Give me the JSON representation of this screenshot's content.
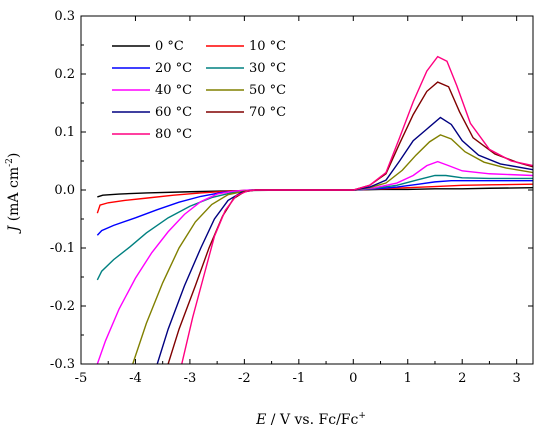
{
  "chart_data": {
    "type": "line",
    "xlabel": {
      "var": "E",
      "rest": " / V vs. Fc/Fc",
      "sup": "+"
    },
    "ylabel": {
      "var": "J",
      "rest": " (mA cm",
      "sup": "-2",
      "close": ")"
    },
    "xlim": [
      -5,
      3.3
    ],
    "ylim": [
      -0.3,
      0.3
    ],
    "xticks": [
      "-5",
      "-4",
      "-3",
      "-2",
      "-1",
      "0",
      "1",
      "2",
      "3"
    ],
    "yticks": [
      "-0.3",
      "-0.2",
      "-0.1",
      "0.0",
      "0.1",
      "0.2",
      "0.3"
    ],
    "grid": false,
    "legend_position": "top-left",
    "series": [
      {
        "name": "0 °C",
        "color": "#000000",
        "points": [
          [
            -4.7,
            -0.012
          ],
          [
            -4.6,
            -0.009
          ],
          [
            -4.3,
            -0.007
          ],
          [
            -3.8,
            -0.005
          ],
          [
            -3.0,
            -0.003
          ],
          [
            -2.0,
            -0.001
          ],
          [
            -1.0,
            0.0
          ],
          [
            0.0,
            0.0
          ],
          [
            0.5,
            0.001
          ],
          [
            1.0,
            0.001
          ],
          [
            1.5,
            0.002
          ],
          [
            2.0,
            0.002
          ],
          [
            2.5,
            0.003
          ],
          [
            3.3,
            0.004
          ]
        ]
      },
      {
        "name": "10 °C",
        "color": "#ff0000",
        "points": [
          [
            -4.7,
            -0.04
          ],
          [
            -4.65,
            -0.026
          ],
          [
            -4.5,
            -0.022
          ],
          [
            -4.2,
            -0.018
          ],
          [
            -3.8,
            -0.014
          ],
          [
            -3.3,
            -0.009
          ],
          [
            -2.8,
            -0.005
          ],
          [
            -2.3,
            -0.002
          ],
          [
            -1.8,
            0.0
          ],
          [
            0.0,
            0.0
          ],
          [
            0.5,
            0.002
          ],
          [
            1.0,
            0.004
          ],
          [
            1.5,
            0.006
          ],
          [
            2.0,
            0.008
          ],
          [
            2.5,
            0.009
          ],
          [
            3.3,
            0.01
          ]
        ]
      },
      {
        "name": "20 °C",
        "color": "#0000ff",
        "points": [
          [
            -4.7,
            -0.078
          ],
          [
            -4.62,
            -0.07
          ],
          [
            -4.4,
            -0.061
          ],
          [
            -4.0,
            -0.048
          ],
          [
            -3.6,
            -0.034
          ],
          [
            -3.2,
            -0.021
          ],
          [
            -2.8,
            -0.011
          ],
          [
            -2.4,
            -0.004
          ],
          [
            -2.0,
            -0.001
          ],
          [
            -1.8,
            0.0
          ],
          [
            0.0,
            0.0
          ],
          [
            0.4,
            0.002
          ],
          [
            0.8,
            0.005
          ],
          [
            1.2,
            0.01
          ],
          [
            1.5,
            0.014
          ],
          [
            1.8,
            0.016
          ],
          [
            2.2,
            0.016
          ],
          [
            2.6,
            0.016
          ],
          [
            3.3,
            0.016
          ]
        ]
      },
      {
        "name": "30 °C",
        "color": "#008080",
        "points": [
          [
            -4.7,
            -0.155
          ],
          [
            -4.62,
            -0.14
          ],
          [
            -4.4,
            -0.12
          ],
          [
            -4.1,
            -0.098
          ],
          [
            -3.8,
            -0.074
          ],
          [
            -3.4,
            -0.048
          ],
          [
            -3.0,
            -0.028
          ],
          [
            -2.6,
            -0.013
          ],
          [
            -2.2,
            -0.004
          ],
          [
            -1.9,
            0.0
          ],
          [
            0.0,
            0.0
          ],
          [
            0.4,
            0.003
          ],
          [
            0.8,
            0.008
          ],
          [
            1.2,
            0.018
          ],
          [
            1.5,
            0.025
          ],
          [
            1.7,
            0.025
          ],
          [
            2.0,
            0.021
          ],
          [
            2.5,
            0.02
          ],
          [
            3.3,
            0.02
          ]
        ]
      },
      {
        "name": "40 °C",
        "color": "#ff00ff",
        "points": [
          [
            -4.7,
            -0.3
          ],
          [
            -4.55,
            -0.26
          ],
          [
            -4.3,
            -0.205
          ],
          [
            -4.0,
            -0.152
          ],
          [
            -3.7,
            -0.108
          ],
          [
            -3.4,
            -0.072
          ],
          [
            -3.1,
            -0.042
          ],
          [
            -2.8,
            -0.02
          ],
          [
            -2.5,
            -0.007
          ],
          [
            -2.2,
            -0.002
          ],
          [
            -1.9,
            0.0
          ],
          [
            0.0,
            0.0
          ],
          [
            0.4,
            0.004
          ],
          [
            0.8,
            0.012
          ],
          [
            1.1,
            0.025
          ],
          [
            1.35,
            0.042
          ],
          [
            1.55,
            0.049
          ],
          [
            1.75,
            0.042
          ],
          [
            2.0,
            0.033
          ],
          [
            2.5,
            0.028
          ],
          [
            3.3,
            0.025
          ]
        ]
      },
      {
        "name": "50 °C",
        "color": "#808000",
        "points": [
          [
            -4.05,
            -0.3
          ],
          [
            -3.8,
            -0.23
          ],
          [
            -3.5,
            -0.16
          ],
          [
            -3.2,
            -0.1
          ],
          [
            -2.9,
            -0.055
          ],
          [
            -2.6,
            -0.025
          ],
          [
            -2.3,
            -0.008
          ],
          [
            -2.0,
            -0.002
          ],
          [
            -1.8,
            0.0
          ],
          [
            0.0,
            0.0
          ],
          [
            0.3,
            0.004
          ],
          [
            0.6,
            0.012
          ],
          [
            0.9,
            0.034
          ],
          [
            1.15,
            0.06
          ],
          [
            1.4,
            0.083
          ],
          [
            1.6,
            0.095
          ],
          [
            1.8,
            0.088
          ],
          [
            2.05,
            0.066
          ],
          [
            2.4,
            0.048
          ],
          [
            2.8,
            0.038
          ],
          [
            3.3,
            0.03
          ]
        ]
      },
      {
        "name": "60 °C",
        "color": "#000080",
        "points": [
          [
            -3.6,
            -0.3
          ],
          [
            -3.4,
            -0.24
          ],
          [
            -3.1,
            -0.165
          ],
          [
            -2.8,
            -0.1
          ],
          [
            -2.55,
            -0.05
          ],
          [
            -2.3,
            -0.018
          ],
          [
            -2.05,
            -0.004
          ],
          [
            -1.8,
            0.0
          ],
          [
            0.0,
            0.0
          ],
          [
            0.3,
            0.005
          ],
          [
            0.6,
            0.017
          ],
          [
            0.85,
            0.05
          ],
          [
            1.1,
            0.085
          ],
          [
            1.35,
            0.105
          ],
          [
            1.6,
            0.125
          ],
          [
            1.8,
            0.113
          ],
          [
            2.0,
            0.085
          ],
          [
            2.3,
            0.06
          ],
          [
            2.7,
            0.045
          ],
          [
            3.3,
            0.035
          ]
        ]
      },
      {
        "name": "70 °C",
        "color": "#800000",
        "points": [
          [
            -3.4,
            -0.3
          ],
          [
            -3.2,
            -0.24
          ],
          [
            -2.9,
            -0.165
          ],
          [
            -2.65,
            -0.1
          ],
          [
            -2.4,
            -0.045
          ],
          [
            -2.2,
            -0.015
          ],
          [
            -2.0,
            -0.003
          ],
          [
            -1.8,
            0.0
          ],
          [
            0.0,
            0.0
          ],
          [
            0.3,
            0.008
          ],
          [
            0.6,
            0.028
          ],
          [
            0.85,
            0.08
          ],
          [
            1.1,
            0.13
          ],
          [
            1.35,
            0.17
          ],
          [
            1.55,
            0.186
          ],
          [
            1.75,
            0.178
          ],
          [
            1.95,
            0.135
          ],
          [
            2.2,
            0.09
          ],
          [
            2.6,
            0.062
          ],
          [
            3.0,
            0.048
          ],
          [
            3.3,
            0.04
          ]
        ]
      },
      {
        "name": "80 °C",
        "color": "#ff0080",
        "points": [
          [
            -3.15,
            -0.3
          ],
          [
            -2.95,
            -0.22
          ],
          [
            -2.75,
            -0.15
          ],
          [
            -2.55,
            -0.08
          ],
          [
            -2.35,
            -0.035
          ],
          [
            -2.15,
            -0.01
          ],
          [
            -1.95,
            -0.002
          ],
          [
            -1.8,
            0.0
          ],
          [
            0.0,
            0.0
          ],
          [
            0.3,
            0.008
          ],
          [
            0.6,
            0.03
          ],
          [
            0.85,
            0.09
          ],
          [
            1.1,
            0.152
          ],
          [
            1.35,
            0.205
          ],
          [
            1.55,
            0.23
          ],
          [
            1.72,
            0.222
          ],
          [
            1.9,
            0.18
          ],
          [
            2.15,
            0.115
          ],
          [
            2.5,
            0.07
          ],
          [
            2.9,
            0.05
          ],
          [
            3.3,
            0.042
          ]
        ]
      }
    ]
  }
}
